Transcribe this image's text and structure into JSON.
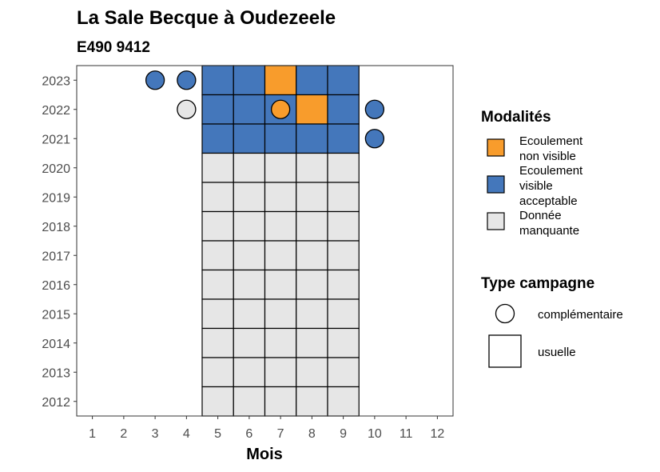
{
  "chart_data": {
    "type": "heatmap",
    "title": "La Sale Becque à Oudezeele",
    "subtitle": "E490 9412",
    "xlabel": "Mois",
    "ylabel": "",
    "x_ticks": [
      "1",
      "2",
      "3",
      "4",
      "5",
      "6",
      "7",
      "8",
      "9",
      "10",
      "11",
      "12"
    ],
    "y_ticks": [
      "2012",
      "2013",
      "2014",
      "2015",
      "2016",
      "2017",
      "2018",
      "2019",
      "2020",
      "2021",
      "2022",
      "2023"
    ],
    "xlim": [
      0.5,
      12.5
    ],
    "ylim": [
      2011.5,
      2023.5
    ],
    "colors": {
      "Ecoulement non visible": "#f89c2c",
      "Ecoulement visible acceptable": "#4477bb",
      "Donnée manquante": "#e6e6e6"
    },
    "usuelle": [
      {
        "year": 2023,
        "months": [
          "Ecoulement visible acceptable",
          "Ecoulement visible acceptable",
          "Ecoulement non visible",
          "Ecoulement visible acceptable",
          "Ecoulement visible acceptable"
        ]
      },
      {
        "year": 2022,
        "months": [
          "Ecoulement visible acceptable",
          "Ecoulement visible acceptable",
          "Ecoulement visible acceptable",
          "Ecoulement non visible",
          "Ecoulement visible acceptable"
        ]
      },
      {
        "year": 2021,
        "months": [
          "Ecoulement visible acceptable",
          "Ecoulement visible acceptable",
          "Ecoulement visible acceptable",
          "Ecoulement visible acceptable",
          "Ecoulement visible acceptable"
        ]
      },
      {
        "year": 2020,
        "months": [
          "Donnée manquante",
          "Donnée manquante",
          "Donnée manquante",
          "Donnée manquante",
          "Donnée manquante"
        ]
      },
      {
        "year": 2019,
        "months": [
          "Donnée manquante",
          "Donnée manquante",
          "Donnée manquante",
          "Donnée manquante",
          "Donnée manquante"
        ]
      },
      {
        "year": 2018,
        "months": [
          "Donnée manquante",
          "Donnée manquante",
          "Donnée manquante",
          "Donnée manquante",
          "Donnée manquante"
        ]
      },
      {
        "year": 2017,
        "months": [
          "Donnée manquante",
          "Donnée manquante",
          "Donnée manquante",
          "Donnée manquante",
          "Donnée manquante"
        ]
      },
      {
        "year": 2016,
        "months": [
          "Donnée manquante",
          "Donnée manquante",
          "Donnée manquante",
          "Donnée manquante",
          "Donnée manquante"
        ]
      },
      {
        "year": 2015,
        "months": [
          "Donnée manquante",
          "Donnée manquante",
          "Donnée manquante",
          "Donnée manquante",
          "Donnée manquante"
        ]
      },
      {
        "year": 2014,
        "months": [
          "Donnée manquante",
          "Donnée manquante",
          "Donnée manquante",
          "Donnée manquante",
          "Donnée manquante"
        ]
      },
      {
        "year": 2013,
        "months": [
          "Donnée manquante",
          "Donnée manquante",
          "Donnée manquante",
          "Donnée manquante",
          "Donnée manquante"
        ]
      },
      {
        "year": 2012,
        "months": [
          "Donnée manquante",
          "Donnée manquante",
          "Donnée manquante",
          "Donnée manquante",
          "Donnée manquante"
        ]
      }
    ],
    "usuelle_first_month": 5,
    "complementaire": [
      {
        "year": 2023,
        "month": 3,
        "value": "Ecoulement visible acceptable"
      },
      {
        "year": 2023,
        "month": 4,
        "value": "Ecoulement visible acceptable"
      },
      {
        "year": 2022,
        "month": 4,
        "value": "Donnée manquante"
      },
      {
        "year": 2022,
        "month": 7,
        "value": "Ecoulement non visible"
      },
      {
        "year": 2022,
        "month": 10,
        "value": "Ecoulement visible acceptable"
      },
      {
        "year": 2021,
        "month": 10,
        "value": "Ecoulement visible acceptable"
      }
    ],
    "legend": {
      "modalites_title": "Modalités",
      "modalites": [
        {
          "label_lines": [
            "Ecoulement",
            "non visible"
          ],
          "key": "Ecoulement non visible"
        },
        {
          "label_lines": [
            "Ecoulement",
            "visible",
            "acceptable"
          ],
          "key": "Ecoulement visible acceptable"
        },
        {
          "label_lines": [
            "Donnée",
            "manquante"
          ],
          "key": "Donnée manquante"
        }
      ],
      "campagne_title": "Type campagne",
      "campagne": [
        {
          "label": "complémentaire",
          "shape": "circle"
        },
        {
          "label": "usuelle",
          "shape": "square"
        }
      ]
    }
  }
}
